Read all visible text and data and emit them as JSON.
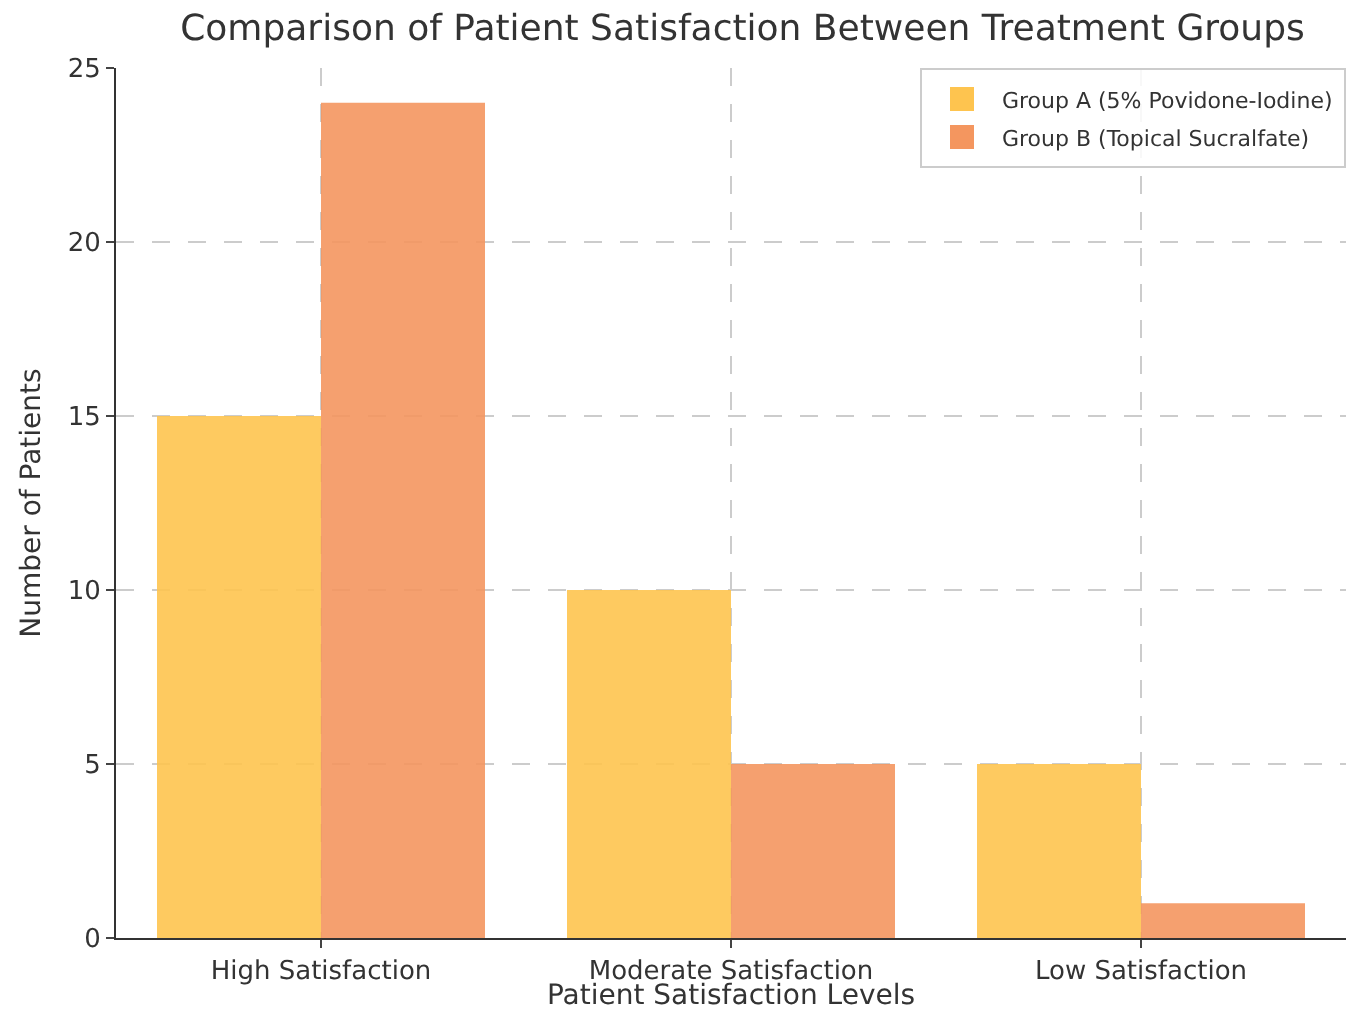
{
  "chart_data": {
    "type": "bar",
    "title": "Comparison of Patient Satisfaction Between Treatment Groups",
    "xlabel": "Patient Satisfaction Levels",
    "ylabel": "Number of Patients",
    "categories": [
      "High Satisfaction",
      "Moderate Satisfaction",
      "Low Satisfaction"
    ],
    "series": [
      {
        "name": "Group A (5% Povidone-Iodine)",
        "color": "#fec44f",
        "values": [
          15,
          10,
          5
        ]
      },
      {
        "name": "Group B (Topical Sucralfate)",
        "color": "#f4965f",
        "values": [
          24,
          5,
          1
        ]
      }
    ],
    "ylim": [
      0,
      25
    ],
    "yticks": [
      0,
      5,
      10,
      15,
      20,
      25
    ],
    "grid": true,
    "legend": "top right"
  }
}
